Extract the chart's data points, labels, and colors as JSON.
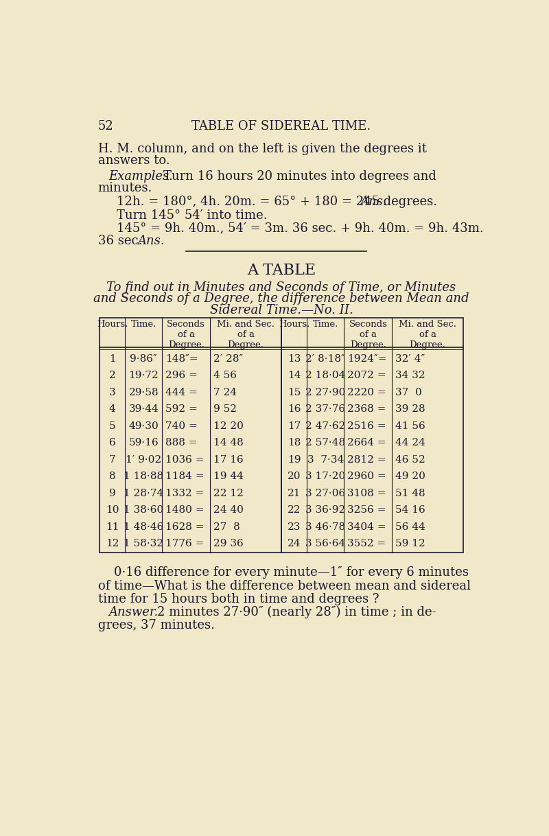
{
  "bg_color": "#f0e8c8",
  "text_color": "#1a1a2e",
  "page_number": "52",
  "page_header": "TABLE OF SIDEREAL TIME.",
  "table_title": "A TABLE",
  "table_subtitle_line1": "To find out in Minutes and Seconds of Time, or Minutes",
  "table_subtitle_line2": "and Seconds of a Degree, the difference between Mean and",
  "table_subtitle_line3": "Sidereal Time.—No. II.",
  "rows_left": [
    [
      1,
      "9·86″",
      "148″=",
      "2′ 28″"
    ],
    [
      2,
      "19·72",
      "296 =",
      "4 56"
    ],
    [
      3,
      "29·58",
      "444 =",
      "7 24"
    ],
    [
      4,
      "39·44",
      "592 =",
      "9 52"
    ],
    [
      5,
      "49·30",
      "740 =",
      "12 20"
    ],
    [
      6,
      "59·16",
      "888 =",
      "14 48"
    ],
    [
      7,
      "1′ 9·02",
      "1036 =",
      "17 16"
    ],
    [
      8,
      "1 18·88",
      "1184 =",
      "19 44"
    ],
    [
      9,
      "1 28·74",
      "1332 =",
      "22 12"
    ],
    [
      10,
      "1 38·60",
      "1480 =",
      "24 40"
    ],
    [
      11,
      "1 48·46",
      "1628 =",
      "27  8"
    ],
    [
      12,
      "1 58·32",
      "1776 =",
      "29 36"
    ]
  ],
  "rows_right": [
    [
      13,
      "2′ 8·18″",
      "1924″=",
      "32′ 4″"
    ],
    [
      14,
      "2 18·04",
      "2072 =",
      "34 32"
    ],
    [
      15,
      "2 27·90",
      "2220 =",
      "37  0"
    ],
    [
      16,
      "2 37·76",
      "2368 =",
      "39 28"
    ],
    [
      17,
      "2 47·62",
      "2516 =",
      "41 56"
    ],
    [
      18,
      "2 57·48",
      "2664 =",
      "44 24"
    ],
    [
      19,
      "3  7·34",
      "2812 =",
      "46 52"
    ],
    [
      20,
      "3 17·20",
      "2960 =",
      "49 20"
    ],
    [
      21,
      "3 27·06",
      "3108 =",
      "51 48"
    ],
    [
      22,
      "3 36·92",
      "3256 =",
      "54 16"
    ],
    [
      23,
      "3 46·78",
      "3404 =",
      "56 44"
    ],
    [
      24,
      "3 56·64",
      "3552 =",
      "59 12"
    ]
  ]
}
